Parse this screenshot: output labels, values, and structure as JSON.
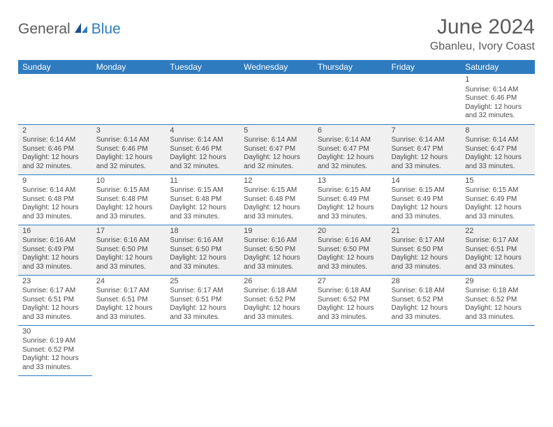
{
  "logo": {
    "general": "General",
    "blue": "Blue"
  },
  "title": "June 2024",
  "subtitle": "Gbanleu, Ivory Coast",
  "colors": {
    "accent": "#2f7bbf",
    "header_text": "#ffffff",
    "body_text": "#4a4a4a",
    "alt_row": "#f0f0f0"
  },
  "day_headers": [
    "Sunday",
    "Monday",
    "Tuesday",
    "Wednesday",
    "Thursday",
    "Friday",
    "Saturday"
  ],
  "weeks": [
    [
      null,
      null,
      null,
      null,
      null,
      null,
      {
        "n": "1",
        "sr": "Sunrise: 6:14 AM",
        "ss": "Sunset: 6:46 PM",
        "dl": "Daylight: 12 hours and 32 minutes."
      }
    ],
    [
      {
        "n": "2",
        "sr": "Sunrise: 6:14 AM",
        "ss": "Sunset: 6:46 PM",
        "dl": "Daylight: 12 hours and 32 minutes."
      },
      {
        "n": "3",
        "sr": "Sunrise: 6:14 AM",
        "ss": "Sunset: 6:46 PM",
        "dl": "Daylight: 12 hours and 32 minutes."
      },
      {
        "n": "4",
        "sr": "Sunrise: 6:14 AM",
        "ss": "Sunset: 6:46 PM",
        "dl": "Daylight: 12 hours and 32 minutes."
      },
      {
        "n": "5",
        "sr": "Sunrise: 6:14 AM",
        "ss": "Sunset: 6:47 PM",
        "dl": "Daylight: 12 hours and 32 minutes."
      },
      {
        "n": "6",
        "sr": "Sunrise: 6:14 AM",
        "ss": "Sunset: 6:47 PM",
        "dl": "Daylight: 12 hours and 32 minutes."
      },
      {
        "n": "7",
        "sr": "Sunrise: 6:14 AM",
        "ss": "Sunset: 6:47 PM",
        "dl": "Daylight: 12 hours and 33 minutes."
      },
      {
        "n": "8",
        "sr": "Sunrise: 6:14 AM",
        "ss": "Sunset: 6:47 PM",
        "dl": "Daylight: 12 hours and 33 minutes."
      }
    ],
    [
      {
        "n": "9",
        "sr": "Sunrise: 6:14 AM",
        "ss": "Sunset: 6:48 PM",
        "dl": "Daylight: 12 hours and 33 minutes."
      },
      {
        "n": "10",
        "sr": "Sunrise: 6:15 AM",
        "ss": "Sunset: 6:48 PM",
        "dl": "Daylight: 12 hours and 33 minutes."
      },
      {
        "n": "11",
        "sr": "Sunrise: 6:15 AM",
        "ss": "Sunset: 6:48 PM",
        "dl": "Daylight: 12 hours and 33 minutes."
      },
      {
        "n": "12",
        "sr": "Sunrise: 6:15 AM",
        "ss": "Sunset: 6:48 PM",
        "dl": "Daylight: 12 hours and 33 minutes."
      },
      {
        "n": "13",
        "sr": "Sunrise: 6:15 AM",
        "ss": "Sunset: 6:49 PM",
        "dl": "Daylight: 12 hours and 33 minutes."
      },
      {
        "n": "14",
        "sr": "Sunrise: 6:15 AM",
        "ss": "Sunset: 6:49 PM",
        "dl": "Daylight: 12 hours and 33 minutes."
      },
      {
        "n": "15",
        "sr": "Sunrise: 6:15 AM",
        "ss": "Sunset: 6:49 PM",
        "dl": "Daylight: 12 hours and 33 minutes."
      }
    ],
    [
      {
        "n": "16",
        "sr": "Sunrise: 6:16 AM",
        "ss": "Sunset: 6:49 PM",
        "dl": "Daylight: 12 hours and 33 minutes."
      },
      {
        "n": "17",
        "sr": "Sunrise: 6:16 AM",
        "ss": "Sunset: 6:50 PM",
        "dl": "Daylight: 12 hours and 33 minutes."
      },
      {
        "n": "18",
        "sr": "Sunrise: 6:16 AM",
        "ss": "Sunset: 6:50 PM",
        "dl": "Daylight: 12 hours and 33 minutes."
      },
      {
        "n": "19",
        "sr": "Sunrise: 6:16 AM",
        "ss": "Sunset: 6:50 PM",
        "dl": "Daylight: 12 hours and 33 minutes."
      },
      {
        "n": "20",
        "sr": "Sunrise: 6:16 AM",
        "ss": "Sunset: 6:50 PM",
        "dl": "Daylight: 12 hours and 33 minutes."
      },
      {
        "n": "21",
        "sr": "Sunrise: 6:17 AM",
        "ss": "Sunset: 6:50 PM",
        "dl": "Daylight: 12 hours and 33 minutes."
      },
      {
        "n": "22",
        "sr": "Sunrise: 6:17 AM",
        "ss": "Sunset: 6:51 PM",
        "dl": "Daylight: 12 hours and 33 minutes."
      }
    ],
    [
      {
        "n": "23",
        "sr": "Sunrise: 6:17 AM",
        "ss": "Sunset: 6:51 PM",
        "dl": "Daylight: 12 hours and 33 minutes."
      },
      {
        "n": "24",
        "sr": "Sunrise: 6:17 AM",
        "ss": "Sunset: 6:51 PM",
        "dl": "Daylight: 12 hours and 33 minutes."
      },
      {
        "n": "25",
        "sr": "Sunrise: 6:17 AM",
        "ss": "Sunset: 6:51 PM",
        "dl": "Daylight: 12 hours and 33 minutes."
      },
      {
        "n": "26",
        "sr": "Sunrise: 6:18 AM",
        "ss": "Sunset: 6:52 PM",
        "dl": "Daylight: 12 hours and 33 minutes."
      },
      {
        "n": "27",
        "sr": "Sunrise: 6:18 AM",
        "ss": "Sunset: 6:52 PM",
        "dl": "Daylight: 12 hours and 33 minutes."
      },
      {
        "n": "28",
        "sr": "Sunrise: 6:18 AM",
        "ss": "Sunset: 6:52 PM",
        "dl": "Daylight: 12 hours and 33 minutes."
      },
      {
        "n": "29",
        "sr": "Sunrise: 6:18 AM",
        "ss": "Sunset: 6:52 PM",
        "dl": "Daylight: 12 hours and 33 minutes."
      }
    ],
    [
      {
        "n": "30",
        "sr": "Sunrise: 6:19 AM",
        "ss": "Sunset: 6:52 PM",
        "dl": "Daylight: 12 hours and 33 minutes."
      },
      null,
      null,
      null,
      null,
      null,
      null
    ]
  ]
}
